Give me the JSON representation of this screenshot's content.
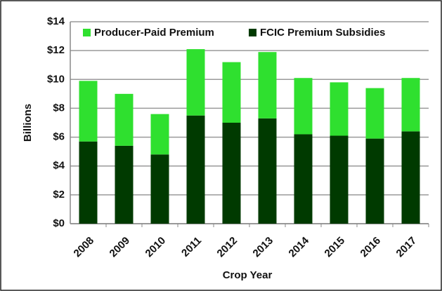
{
  "chart_data": {
    "type": "stacked_bar",
    "x_label": "Crop Year",
    "y_label": "Billions",
    "categories": [
      "2008",
      "2009",
      "2010",
      "2011",
      "2012",
      "2013",
      "2014",
      "2015",
      "2016",
      "2017"
    ],
    "series": [
      {
        "name": "FCIC Premium Subsidies",
        "color": "#003a00",
        "values": [
          5.7,
          5.4,
          4.8,
          7.5,
          7.0,
          7.3,
          6.2,
          6.1,
          5.9,
          6.4
        ]
      },
      {
        "name": "Producer-Paid Premium",
        "color": "#2fe02f",
        "values": [
          4.2,
          3.6,
          2.8,
          4.6,
          4.2,
          4.6,
          3.9,
          3.7,
          3.5,
          3.7
        ]
      }
    ],
    "ylim": [
      0,
      14
    ],
    "yticks": [
      {
        "value": 0,
        "label": "$0"
      },
      {
        "value": 2,
        "label": "$2"
      },
      {
        "value": 4,
        "label": "$4"
      },
      {
        "value": 6,
        "label": "$6"
      },
      {
        "value": 8,
        "label": "$8"
      },
      {
        "value": 10,
        "label": "$10"
      },
      {
        "value": 12,
        "label": "$12"
      },
      {
        "value": 14,
        "label": "$14"
      }
    ],
    "grid": true
  }
}
